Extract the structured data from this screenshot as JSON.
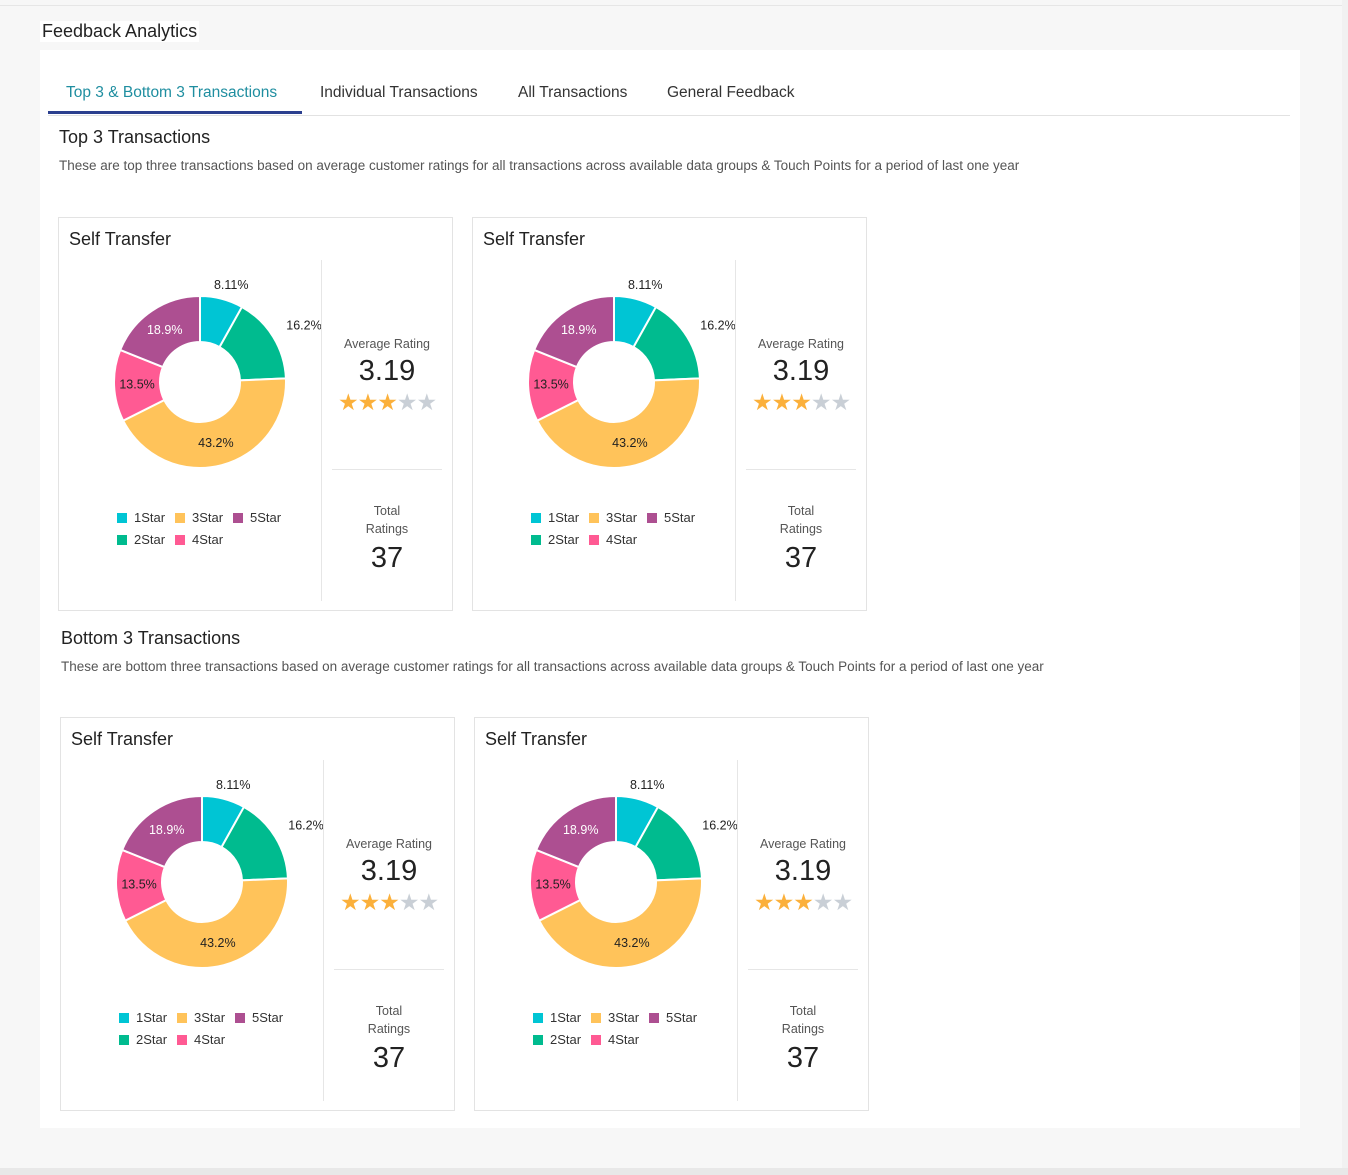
{
  "page": {
    "title": "Feedback Analytics"
  },
  "tabs": [
    {
      "label": "Top 3 & Bottom 3 Transactions",
      "active": true
    },
    {
      "label": "Individual Transactions",
      "active": false
    },
    {
      "label": "All Transactions",
      "active": false
    },
    {
      "label": "General Feedback",
      "active": false
    }
  ],
  "colors": {
    "accent": "#1f8ea0",
    "tab_underline": "#2b3f8f",
    "star_on": "#fbb03b",
    "star_off": "#c9cfd6"
  },
  "sections": [
    {
      "title": "Top 3 Transactions",
      "description": "These are top three transactions based on average customer ratings for all transactions across available data groups & Touch Points for a period of last one year",
      "cards": [
        {
          "title": "Self Transfer",
          "avg_label": "Average Rating",
          "avg_value": "3.19",
          "stars_filled": 3,
          "stars_total": 5,
          "total_label_1": "Total",
          "total_label_2": "Ratings",
          "total_value": "37"
        },
        {
          "title": "Self Transfer",
          "avg_label": "Average Rating",
          "avg_value": "3.19",
          "stars_filled": 3,
          "stars_total": 5,
          "total_label_1": "Total",
          "total_label_2": "Ratings",
          "total_value": "37"
        }
      ]
    },
    {
      "title": "Bottom 3 Transactions",
      "description": "These are bottom three transactions based on average customer ratings for all transactions across available data groups & Touch Points for a period of last one year",
      "cards": [
        {
          "title": "Self Transfer",
          "avg_label": "Average Rating",
          "avg_value": "3.19",
          "stars_filled": 3,
          "stars_total": 5,
          "total_label_1": "Total",
          "total_label_2": "Ratings",
          "total_value": "37"
        },
        {
          "title": "Self Transfer",
          "avg_label": "Average Rating",
          "avg_value": "3.19",
          "stars_filled": 3,
          "stars_total": 5,
          "total_label_1": "Total",
          "total_label_2": "Ratings",
          "total_value": "37"
        }
      ]
    }
  ],
  "chart_data": {
    "type": "pie",
    "variant": "donut",
    "categories": [
      "1Star",
      "2Star",
      "3Star",
      "4Star",
      "5Star"
    ],
    "values": [
      8.11,
      16.2,
      43.2,
      13.5,
      18.9
    ],
    "labels": [
      "8.11%",
      "16.2%",
      "43.2%",
      "13.5%",
      "18.9%"
    ],
    "colors": [
      "#00c5d4",
      "#00bb8f",
      "#ffc35a",
      "#ff5a93",
      "#ad4f91"
    ],
    "legend": {
      "placement": "bottom",
      "order": [
        "1Star",
        "3Star",
        "5Star",
        "2Star",
        "4Star"
      ]
    }
  }
}
